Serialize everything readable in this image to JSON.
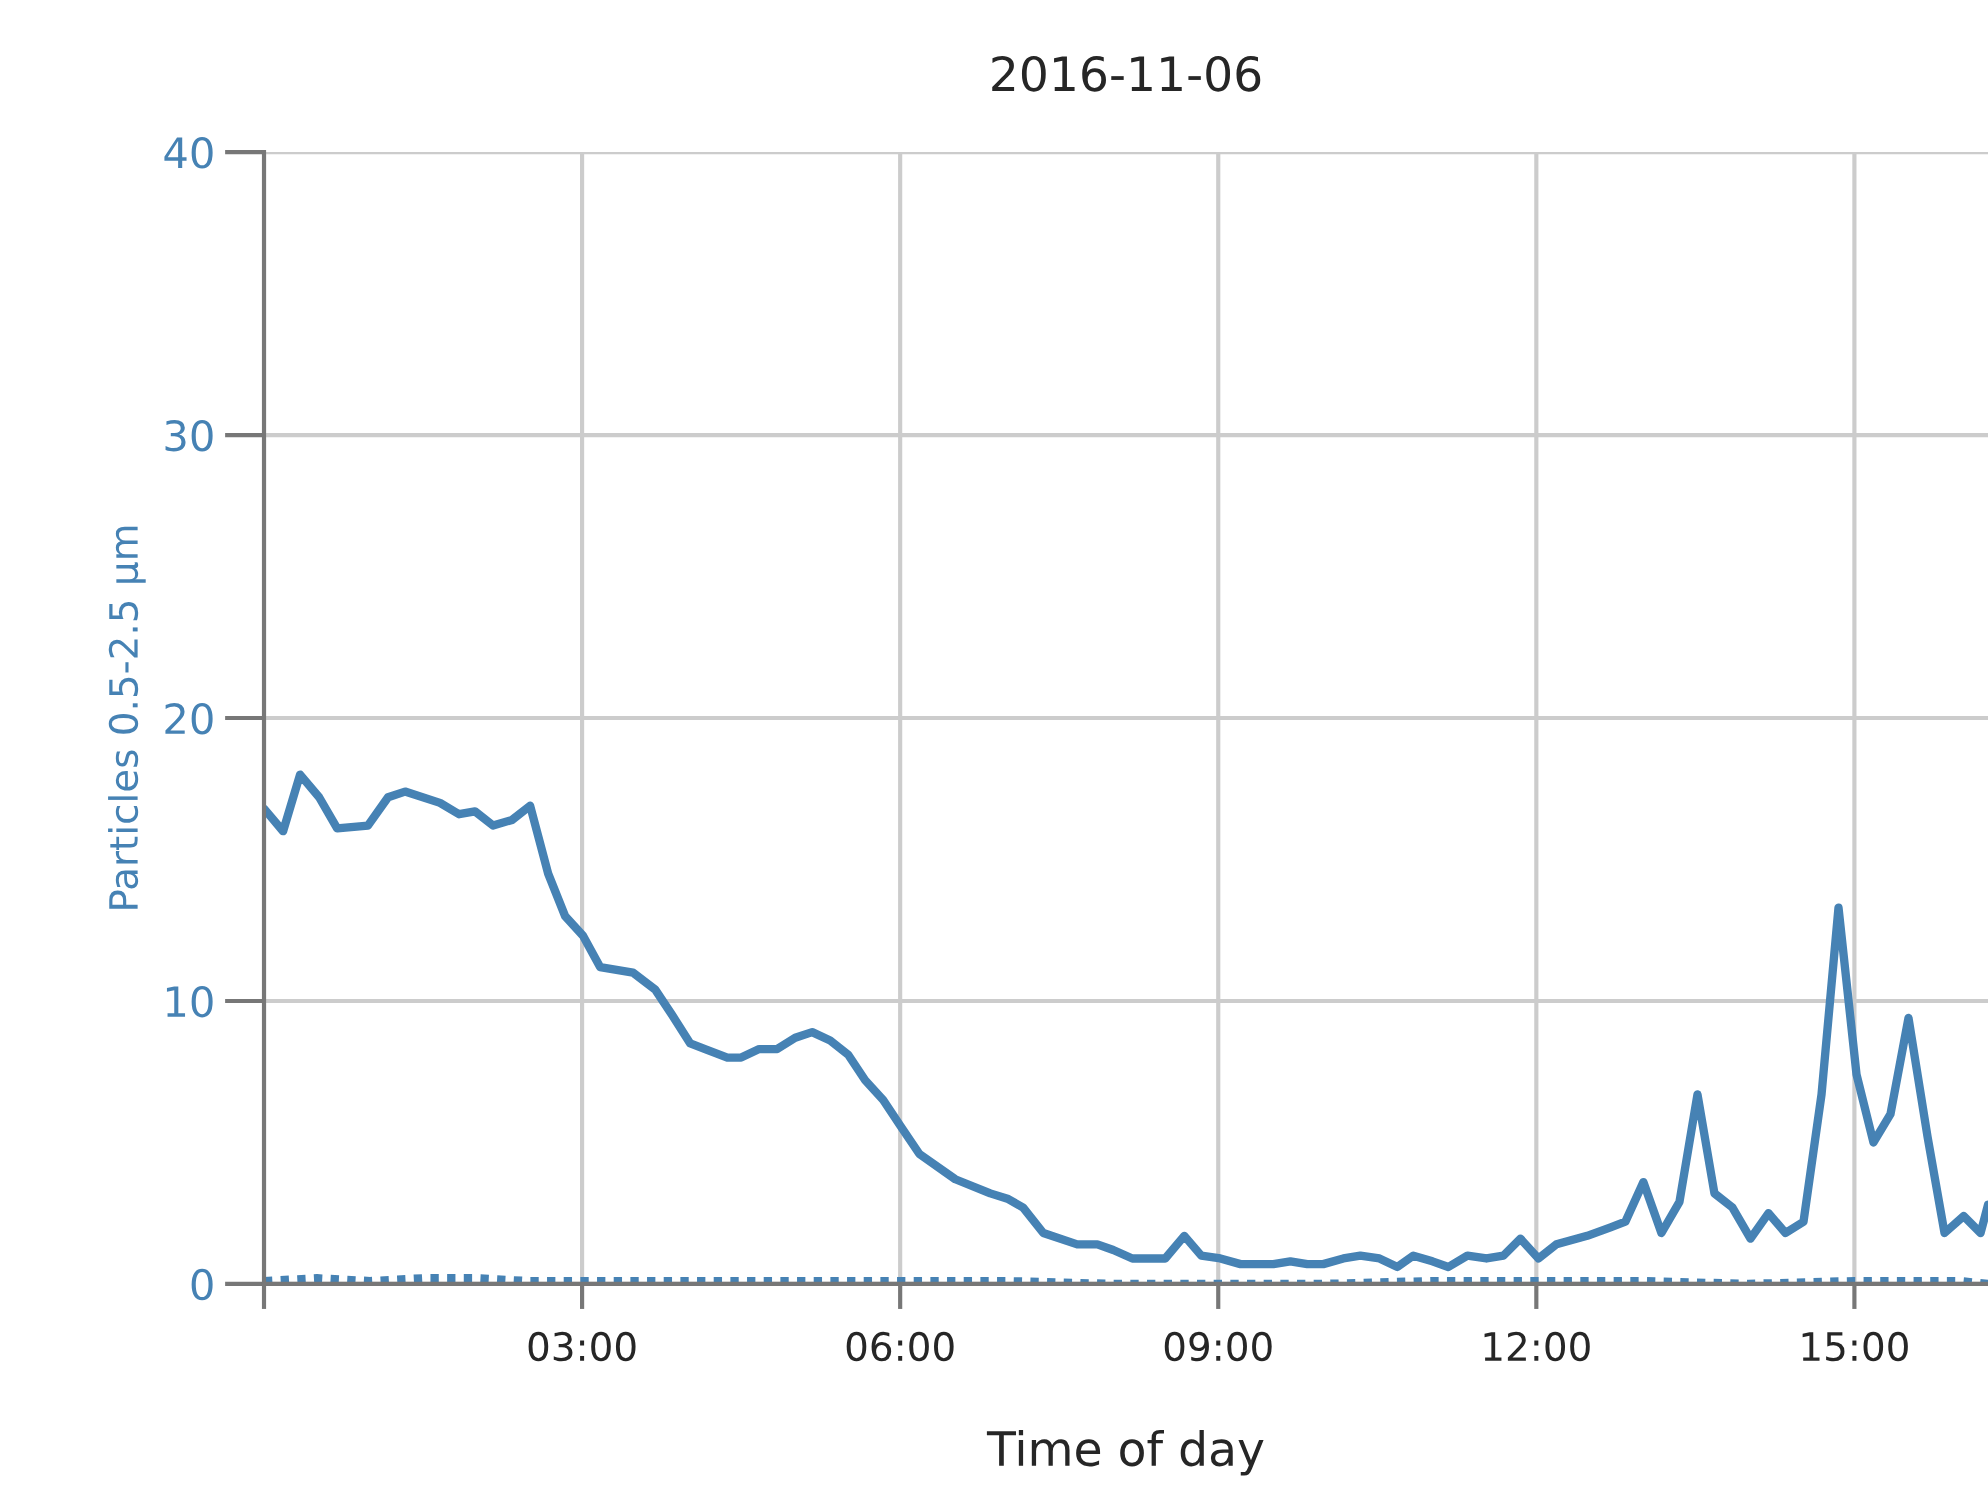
{
  "chart_data": {
    "type": "line",
    "title": "2016-11-06",
    "xlabel": "Time of day",
    "ylabel": "Particles 0.5-2.5 µm",
    "xlim": [
      0,
      16.26
    ],
    "ylim": [
      0,
      40
    ],
    "xticks": [
      {
        "value": 0,
        "label": null
      },
      {
        "value": 3,
        "label": "03:00"
      },
      {
        "value": 6,
        "label": "06:00"
      },
      {
        "value": 9,
        "label": "09:00"
      },
      {
        "value": 12,
        "label": "12:00"
      },
      {
        "value": 15,
        "label": "15:00"
      }
    ],
    "yticks": [
      0,
      10,
      20,
      30,
      40
    ],
    "grid": true,
    "marker": "none",
    "series": [
      {
        "color": "#4682b4",
        "line_style": "solid",
        "x": [
          0,
          0.18,
          0.34,
          0.52,
          0.69,
          0.98,
          1.17,
          1.33,
          1.66,
          1.84,
          1.99,
          2.16,
          2.34,
          2.51,
          2.68,
          2.84,
          3.01,
          3.17,
          3.48,
          3.69,
          3.85,
          4.02,
          4.16,
          4.37,
          4.5,
          4.67,
          4.84,
          5.01,
          5.17,
          5.34,
          5.51,
          5.67,
          5.84,
          6.0,
          6.18,
          6.52,
          6.85,
          7.02,
          7.16,
          7.35,
          7.67,
          7.86,
          8.01,
          8.19,
          8.5,
          8.68,
          8.84,
          9.02,
          9.21,
          9.52,
          9.68,
          9.84,
          9.99,
          10.18,
          10.34,
          10.52,
          10.69,
          10.84,
          11.02,
          11.17,
          11.35,
          11.53,
          11.69,
          11.85,
          12.02,
          12.19,
          12.48,
          12.7,
          12.84,
          13.01,
          13.18,
          13.35,
          13.52,
          13.68,
          13.85,
          14.02,
          14.19,
          14.35,
          14.52,
          14.69,
          14.85,
          15.02,
          15.18,
          15.34,
          15.51,
          15.69,
          15.85,
          16.03,
          16.19,
          16.26
        ],
        "values": [
          16.8,
          16.0,
          18.0,
          17.2,
          16.1,
          16.2,
          17.2,
          17.4,
          17.0,
          16.6,
          16.7,
          16.2,
          16.4,
          16.9,
          14.5,
          13.0,
          12.3,
          11.2,
          11.0,
          10.4,
          9.5,
          8.5,
          8.3,
          8.0,
          8.0,
          8.3,
          8.3,
          8.7,
          8.9,
          8.6,
          8.1,
          7.2,
          6.5,
          5.6,
          4.6,
          3.7,
          3.2,
          3.0,
          2.7,
          1.8,
          1.4,
          1.4,
          1.2,
          0.9,
          0.9,
          1.7,
          1.0,
          0.9,
          0.7,
          0.7,
          0.8,
          0.7,
          0.7,
          0.9,
          1.0,
          0.9,
          0.6,
          1.0,
          0.8,
          0.6,
          1.0,
          0.9,
          1.0,
          1.6,
          0.9,
          1.4,
          1.7,
          2.0,
          2.2,
          3.6,
          1.8,
          2.9,
          6.7,
          3.2,
          2.7,
          1.6,
          2.5,
          1.8,
          2.2,
          6.7,
          13.3,
          7.4,
          5.0,
          6.0,
          9.4,
          5.2,
          1.8,
          2.4,
          1.8,
          2.8
        ]
      },
      {
        "color": "#4682b4",
        "line_style": "dotted",
        "x": [
          0,
          0.5,
          1.0,
          1.5,
          2.0,
          2.5,
          3.0,
          4.0,
          5.0,
          6.0,
          7.0,
          8.0,
          9.0,
          10.0,
          11.0,
          12.0,
          13.0,
          14.0,
          15.0,
          16.0,
          16.26
        ],
        "values": [
          0.1,
          0.2,
          0.1,
          0.2,
          0.2,
          0.1,
          0.1,
          0.1,
          0.1,
          0.1,
          0.1,
          0.0,
          0.0,
          0.0,
          0.1,
          0.1,
          0.1,
          0.0,
          0.1,
          0.1,
          0.0
        ]
      }
    ]
  }
}
